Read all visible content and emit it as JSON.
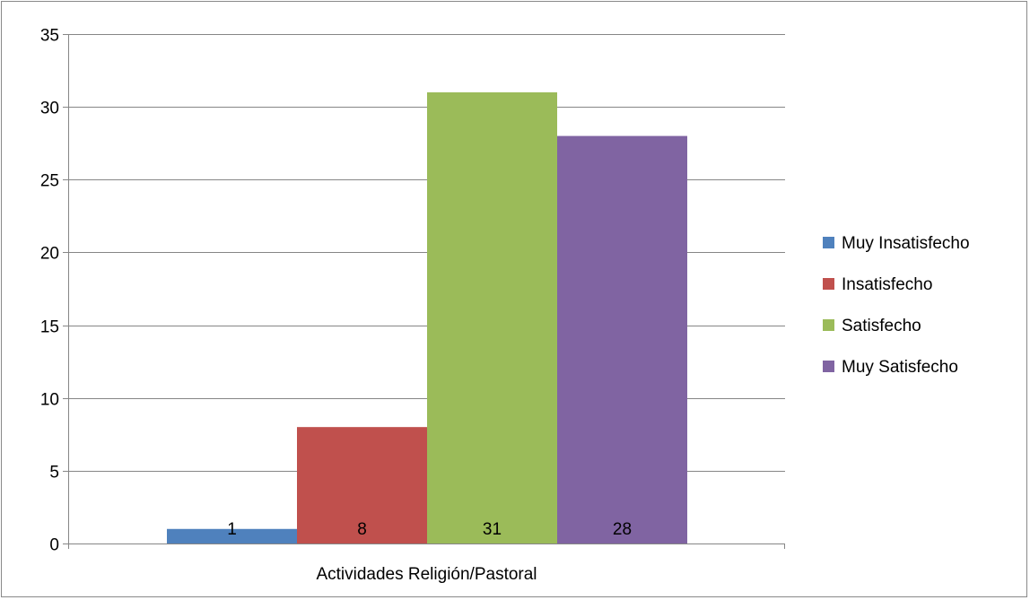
{
  "chart_data": {
    "type": "bar",
    "categories": [
      "Actividades Religión/Pastoral"
    ],
    "series": [
      {
        "name": "Muy Insatisfecho",
        "values": [
          1
        ],
        "color": "#4F81BD"
      },
      {
        "name": "Insatisfecho",
        "values": [
          8
        ],
        "color": "#C0504D"
      },
      {
        "name": "Satisfecho",
        "values": [
          31
        ],
        "color": "#9BBB59"
      },
      {
        "name": "Muy Satisfecho",
        "values": [
          28
        ],
        "color": "#8064A2"
      }
    ],
    "data_labels": [
      "1",
      "8",
      "31",
      "28"
    ],
    "ylim": [
      0,
      35
    ],
    "yticks": [
      0,
      5,
      10,
      15,
      20,
      25,
      30,
      35
    ],
    "ytick_labels": [
      "0",
      "5",
      "10",
      "15",
      "20",
      "25",
      "30",
      "35"
    ],
    "grid": true,
    "legend_position": "right"
  }
}
